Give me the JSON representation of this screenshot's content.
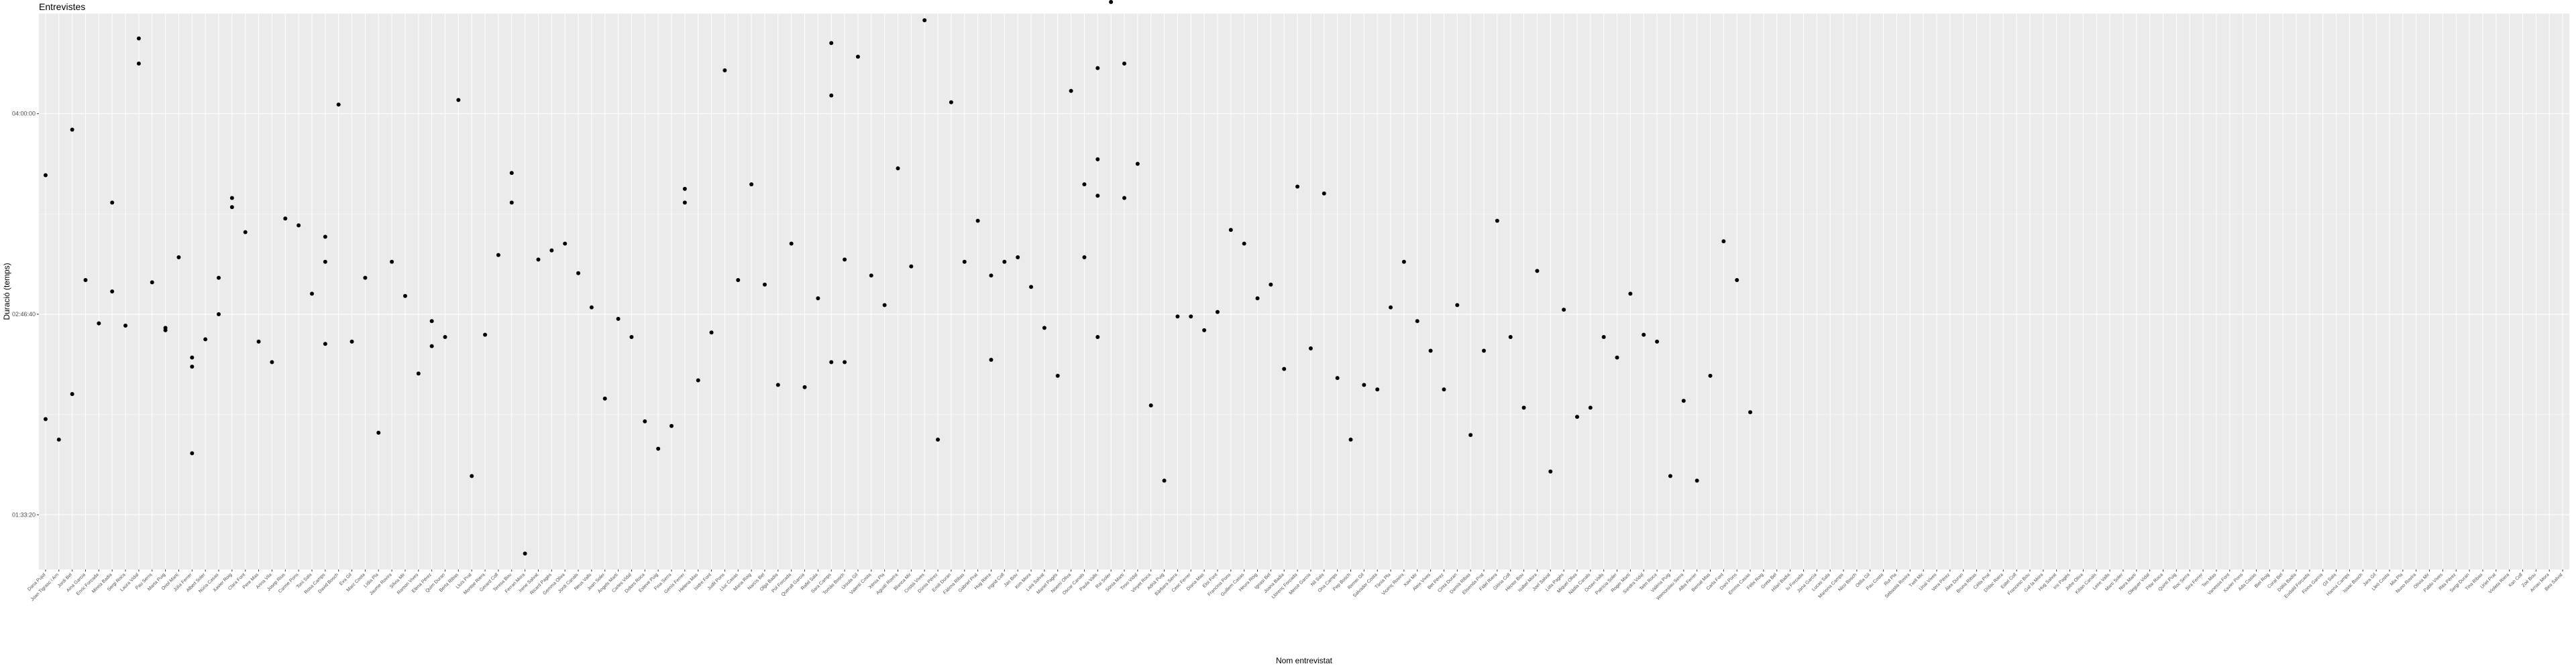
{
  "chart_data": {
    "type": "scatter",
    "title": "Entrevistes",
    "xlabel": "Nom entrevistat",
    "ylabel": "Duració (temps)",
    "yticks": [
      {
        "label": "01:33:20",
        "value": 5600
      },
      {
        "label": "02:46:40",
        "value": 10000
      },
      {
        "label": "04:00:00",
        "value": 14400
      }
    ],
    "ylim": [
      4400,
      16600
    ],
    "grid": true,
    "background": "#ebebeb",
    "gridColor": "#ffffff",
    "pointColor": "#000000",
    "categories": [
      "Dana Pujol",
      "Joan Tigrasc i Arn",
      "Jordi Bel",
      "Aina Garcia",
      "Enric Forcada",
      "Mireia Badia",
      "Sergi Roca",
      "Laura Vidal",
      "Pau Serra",
      "Marta Puig",
      "Oriol Martí",
      "Júlia Ferrer",
      "Albert Soler",
      "Núria Casas",
      "Xavier Roig",
      "Clara Font",
      "Pere Mas",
      "Anna Vila",
      "Josep Rius",
      "Carme Pons",
      "Toni Sala",
      "Rosa Camps",
      "David Bosch",
      "Eva Gil",
      "Marc Costa",
      "Lídia Pla",
      "Jaume Rovira",
      "Sílvia Mir",
      "Ramon Vives",
      "Elena Pérez",
      "Quim Duran",
      "Berta Ribas",
      "Lluís Prat",
      "Montse Riera",
      "Gerard Coll",
      "Teresa Bou",
      "Ferran Mora",
      "Irene Salvat",
      "Ricard Pagès",
      "Gemma Oliva",
      "Jordi Canals",
      "Neus Valls",
      "Joan Soler",
      "Àngels Martí",
      "Carles Vidal",
      "Dolors Roca",
      "Esteve Puig",
      "Fina Serra",
      "Genís Ferrer",
      "Helena Mas",
      "Isidre Font",
      "Judit Pons",
      "Lluc Casas",
      "Maria Roig",
      "Narcís Bel",
      "Olga Badia",
      "Pol Forcada",
      "Queralt Garcia",
      "Rafel Sala",
      "Sara Camps",
      "Tomàs Bosch",
      "Úrsula Gil",
      "Valentí Costa",
      "Xènia Pla",
      "Agustí Rovira",
      "Blanca Mir",
      "Cristià Vives",
      "Dúnia Pérez",
      "Emili Duran",
      "Fàtima Ribas",
      "Gabriel Prat",
      "Hug Riera",
      "Ingrid Coll",
      "Jan Bou",
      "Kim Mora",
      "Laia Salvat",
      "Manel Pagès",
      "Noemí Oliva",
      "Oscar Canals",
      "Paula Valls",
      "Rai Soler",
      "Sònia Martí",
      "Tirso Vidal",
      "Vinyet Roca",
      "Adrià Puig",
      "Bàrbara Serra",
      "Cesc Ferrer",
      "Diana Mas",
      "Eloi Font",
      "Francina Pons",
      "Guillem Casas",
      "Heura Roig",
      "Ignasi Bel",
      "Joana Badia",
      "Llorenç Forcada",
      "Mercè Garcia",
      "Nil Sala",
      "Ona Camps",
      "Pep Bosch",
      "Remei Gil",
      "Salvador Costa",
      "Tània Pla",
      "Vicenç Rovira",
      "Xavi Mir",
      "Aleix Vives",
      "Bet Pérez",
      "Cinta Duran",
      "Damià Ribas",
      "Elisenda Prat",
      "Fidel Riera",
      "Glòria Coll",
      "Hèctor Bou",
      "Isabel Mora",
      "Joel Salvat",
      "Lola Pagès",
      "Miquel Oliva",
      "Nàdia Canals",
      "Octavi Valls",
      "Patrícia Soler",
      "Roger Martí",
      "Sandra Vidal",
      "Telm Roca",
      "Valèria Puig",
      "Wenceslau Serra",
      "Alba Ferrer",
      "Bernat Mas",
      "Carla Font",
      "Dani Pons",
      "Emma Casas",
      "Fèlix Roig",
      "Greta Bel",
      "Hilari Badia",
      "Iu Forcada",
      "Jana Garcia",
      "Lucas Sala",
      "Mariona Camps",
      "Nico Bosch",
      "Otília Gil",
      "Pau Costa",
      "Rut Pla",
      "Sebastià Rovira",
      "Txell Mir",
      "Unai Vives",
      "Vera Pérez",
      "Àlex Duran",
      "Bruna Ribas",
      "Cèlia Prat",
      "Dídac Riera",
      "Estel Coll",
      "Francesc Bou",
      "Gal·la Mora",
      "Hug Salvat",
      "Iris Pagès",
      "Jofre Oliva",
      "Kilian Canals",
      "Leire Valls",
      "Martí Soler",
      "Nora Martí",
      "Oleguer Vidal",
      "Pilar Roca",
      "Quintí Puig",
      "Roc Serra",
      "Sira Ferrer",
      "Teo Mas",
      "Vanessa Font",
      "Xavier Pons",
      "Ada Casas",
      "Biel Roig",
      "Coral Bel",
      "Dàlia Badia",
      "Eudald Forcada",
      "Fiona Garcia",
      "Gil Sala",
      "Hanna Camps",
      "Isaac Bosch",
      "Jara Gil",
      "Lleó Costa",
      "Mia Pla",
      "Nuno Rovira",
      "Olívia Mir",
      "Pablo Vives",
      "Rita Pérez",
      "Sergi Duran",
      "Tina Ribas",
      "Uriel Prat",
      "Violeta Riera",
      "Xan Coll",
      "Zoe Bou",
      "Arnau Mora",
      "Bea Salvat"
    ],
    "points": [
      {
        "x": 1,
        "y": 7700
      },
      {
        "x": 1,
        "y": 13050
      },
      {
        "x": 2,
        "y": 7250
      },
      {
        "x": 3,
        "y": 14050
      },
      {
        "x": 3,
        "y": 8250
      },
      {
        "x": 4,
        "y": 10750
      },
      {
        "x": 5,
        "y": 9800
      },
      {
        "x": 6,
        "y": 12450
      },
      {
        "x": 6,
        "y": 10500
      },
      {
        "x": 7,
        "y": 9750
      },
      {
        "x": 8,
        "y": 16050
      },
      {
        "x": 8,
        "y": 15500
      },
      {
        "x": 9,
        "y": 10700
      },
      {
        "x": 10,
        "y": 9700
      },
      {
        "x": 10,
        "y": 9650
      },
      {
        "x": 11,
        "y": 11250
      },
      {
        "x": 12,
        "y": 6950
      },
      {
        "x": 12,
        "y": 8850
      },
      {
        "x": 12,
        "y": 9050
      },
      {
        "x": 13,
        "y": 9450
      },
      {
        "x": 14,
        "y": 10000
      },
      {
        "x": 14,
        "y": 10800
      },
      {
        "x": 15,
        "y": 12550
      },
      {
        "x": 15,
        "y": 12350
      },
      {
        "x": 16,
        "y": 11800
      },
      {
        "x": 17,
        "y": 9400
      },
      {
        "x": 18,
        "y": 8950
      },
      {
        "x": 19,
        "y": 12100
      },
      {
        "x": 20,
        "y": 11950
      },
      {
        "x": 21,
        "y": 10450
      },
      {
        "x": 22,
        "y": 11700
      },
      {
        "x": 22,
        "y": 11150
      },
      {
        "x": 22,
        "y": 9350
      },
      {
        "x": 23,
        "y": 14600
      },
      {
        "x": 24,
        "y": 9400
      },
      {
        "x": 25,
        "y": 10800
      },
      {
        "x": 26,
        "y": 7400
      },
      {
        "x": 27,
        "y": 11150
      },
      {
        "x": 28,
        "y": 10400
      },
      {
        "x": 29,
        "y": 8700
      },
      {
        "x": 30,
        "y": 9850
      },
      {
        "x": 30,
        "y": 9300
      },
      {
        "x": 31,
        "y": 9500
      },
      {
        "x": 32,
        "y": 14700
      },
      {
        "x": 33,
        "y": 6450
      },
      {
        "x": 34,
        "y": 9550
      },
      {
        "x": 35,
        "y": 11300
      },
      {
        "x": 36,
        "y": 12450
      },
      {
        "x": 36,
        "y": 13100
      },
      {
        "x": 37,
        "y": 4750
      },
      {
        "x": 38,
        "y": 11200
      },
      {
        "x": 39,
        "y": 11400
      },
      {
        "x": 40,
        "y": 11550
      },
      {
        "x": 41,
        "y": 10900
      },
      {
        "x": 42,
        "y": 10150
      },
      {
        "x": 43,
        "y": 8150
      },
      {
        "x": 44,
        "y": 9900
      },
      {
        "x": 45,
        "y": 9500
      },
      {
        "x": 46,
        "y": 7650
      },
      {
        "x": 47,
        "y": 7050
      },
      {
        "x": 48,
        "y": 7550
      },
      {
        "x": 49,
        "y": 12750
      },
      {
        "x": 49,
        "y": 12450
      },
      {
        "x": 50,
        "y": 8550
      },
      {
        "x": 51,
        "y": 9600
      },
      {
        "x": 52,
        "y": 15350
      },
      {
        "x": 53,
        "y": 10750
      },
      {
        "x": 54,
        "y": 12850
      },
      {
        "x": 55,
        "y": 10650
      },
      {
        "x": 56,
        "y": 8450
      },
      {
        "x": 57,
        "y": 11550
      },
      {
        "x": 58,
        "y": 8400
      },
      {
        "x": 59,
        "y": 10350
      },
      {
        "x": 60,
        "y": 8950
      },
      {
        "x": 60,
        "y": 15950
      },
      {
        "x": 60,
        "y": 14800
      },
      {
        "x": 61,
        "y": 11200
      },
      {
        "x": 61,
        "y": 8950
      },
      {
        "x": 62,
        "y": 15650
      },
      {
        "x": 63,
        "y": 10850
      },
      {
        "x": 64,
        "y": 10200
      },
      {
        "x": 65,
        "y": 13200
      },
      {
        "x": 66,
        "y": 11050
      },
      {
        "x": 67,
        "y": 16450
      },
      {
        "x": 68,
        "y": 7250
      },
      {
        "x": 69,
        "y": 14650
      },
      {
        "x": 70,
        "y": 11150
      },
      {
        "x": 71,
        "y": 12050
      },
      {
        "x": 72,
        "y": 10850
      },
      {
        "x": 72,
        "y": 9000
      },
      {
        "x": 73,
        "y": 11150
      },
      {
        "x": 74,
        "y": 11250
      },
      {
        "x": 75,
        "y": 10600
      },
      {
        "x": 76,
        "y": 9700
      },
      {
        "x": 77,
        "y": 8650
      },
      {
        "x": 78,
        "y": 14900
      },
      {
        "x": 79,
        "y": 12850
      },
      {
        "x": 79,
        "y": 11250
      },
      {
        "x": 80,
        "y": 15400
      },
      {
        "x": 80,
        "y": 12600
      },
      {
        "x": 80,
        "y": 13400
      },
      {
        "x": 80,
        "y": 9500
      },
      {
        "x": 81,
        "y": 16850
      },
      {
        "x": 82,
        "y": 15500
      },
      {
        "x": 82,
        "y": 12550
      },
      {
        "x": 83,
        "y": 13300
      },
      {
        "x": 84,
        "y": 8000
      },
      {
        "x": 85,
        "y": 6350
      },
      {
        "x": 86,
        "y": 9950
      },
      {
        "x": 87,
        "y": 9950
      },
      {
        "x": 88,
        "y": 9650
      },
      {
        "x": 89,
        "y": 10050
      },
      {
        "x": 90,
        "y": 11850
      },
      {
        "x": 91,
        "y": 11550
      },
      {
        "x": 92,
        "y": 10350
      },
      {
        "x": 93,
        "y": 10650
      },
      {
        "x": 94,
        "y": 8800
      },
      {
        "x": 95,
        "y": 12800
      },
      {
        "x": 96,
        "y": 9250
      },
      {
        "x": 97,
        "y": 12650
      },
      {
        "x": 98,
        "y": 8600
      },
      {
        "x": 99,
        "y": 7250
      },
      {
        "x": 100,
        "y": 8450
      },
      {
        "x": 101,
        "y": 8350
      },
      {
        "x": 102,
        "y": 10150
      },
      {
        "x": 103,
        "y": 11150
      },
      {
        "x": 104,
        "y": 9850
      },
      {
        "x": 105,
        "y": 9200
      },
      {
        "x": 106,
        "y": 8350
      },
      {
        "x": 107,
        "y": 10200
      },
      {
        "x": 108,
        "y": 7350
      },
      {
        "x": 109,
        "y": 9200
      },
      {
        "x": 110,
        "y": 12050
      },
      {
        "x": 111,
        "y": 9500
      },
      {
        "x": 112,
        "y": 7950
      },
      {
        "x": 113,
        "y": 10950
      },
      {
        "x": 114,
        "y": 6550
      },
      {
        "x": 115,
        "y": 10100
      },
      {
        "x": 116,
        "y": 7750
      },
      {
        "x": 117,
        "y": 7950
      },
      {
        "x": 118,
        "y": 9500
      },
      {
        "x": 119,
        "y": 9050
      },
      {
        "x": 120,
        "y": 10450
      },
      {
        "x": 121,
        "y": 9550
      },
      {
        "x": 122,
        "y": 9400
      },
      {
        "x": 123,
        "y": 6450
      },
      {
        "x": 124,
        "y": 8100
      },
      {
        "x": 125,
        "y": 6350
      },
      {
        "x": 126,
        "y": 8650
      },
      {
        "x": 127,
        "y": 11600
      },
      {
        "x": 128,
        "y": 10750
      },
      {
        "x": 129,
        "y": 7850
      }
    ]
  }
}
